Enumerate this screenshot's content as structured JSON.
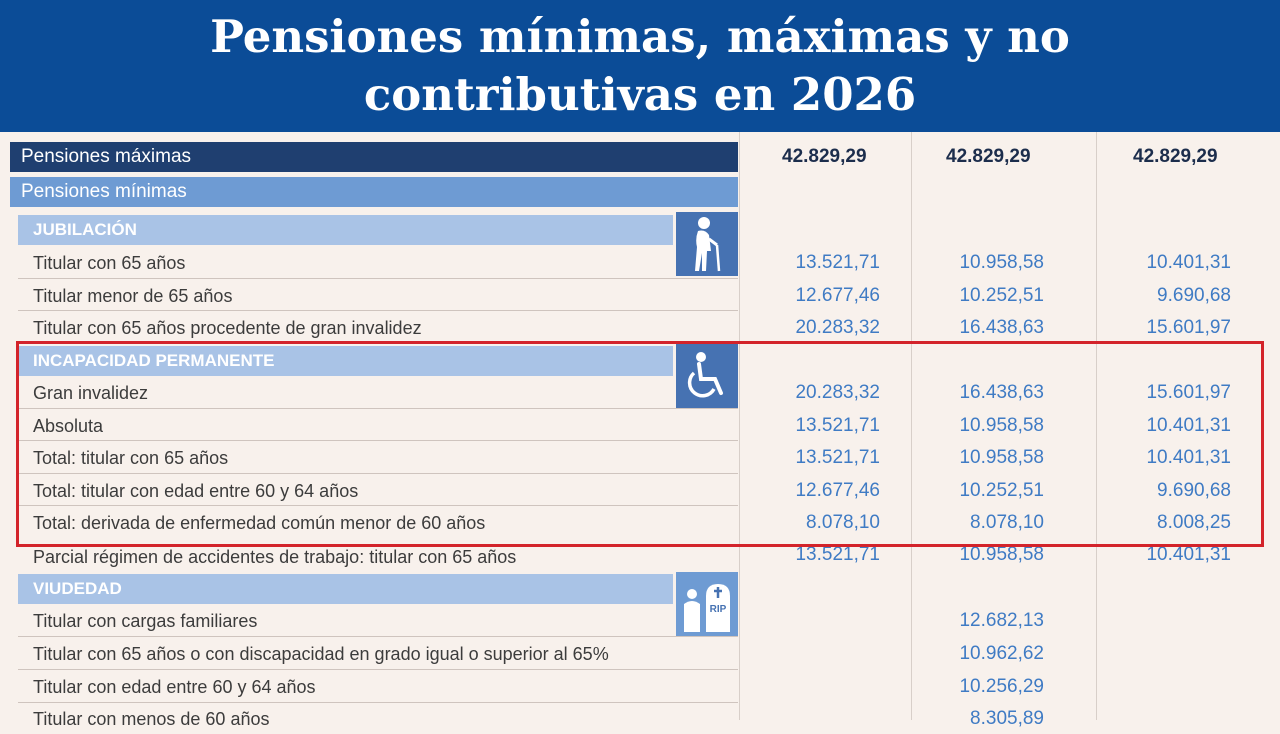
{
  "title": "Pensiones mínimas, máximas y no contributivas en 2026",
  "max": {
    "label": "Pensiones máximas",
    "values": [
      "42.829,29",
      "42.829,29",
      "42.829,29"
    ]
  },
  "min_label": "Pensiones mínimas",
  "sections": [
    {
      "name": "JUBILACIÓN",
      "icon": "elderly-person-icon",
      "rows": [
        {
          "label": "Titular con 65 años",
          "values": [
            "13.521,71",
            "10.958,58",
            "10.401,31"
          ]
        },
        {
          "label": "Titular menor de 65 años",
          "values": [
            "12.677,46",
            "10.252,51",
            "9.690,68"
          ]
        },
        {
          "label": "Titular con 65 años procedente de gran invalidez",
          "values": [
            "20.283,32",
            "16.438,63",
            "15.601,97"
          ]
        }
      ]
    },
    {
      "name": "INCAPACIDAD PERMANENTE",
      "icon": "wheelchair-icon",
      "rows": [
        {
          "label": "Gran invalidez",
          "values": [
            "20.283,32",
            "16.438,63",
            "15.601,97"
          ]
        },
        {
          "label": "Absoluta",
          "values": [
            "13.521,71",
            "10.958,58",
            "10.401,31"
          ]
        },
        {
          "label": "Total: titular con 65 años",
          "values": [
            "13.521,71",
            "10.958,58",
            "10.401,31"
          ]
        },
        {
          "label": "Total: titular con edad entre 60 y 64 años",
          "values": [
            "12.677,46",
            "10.252,51",
            "9.690,68"
          ]
        },
        {
          "label": "Total: derivada de enfermedad común menor de 60 años",
          "values": [
            "8.078,10",
            "8.078,10",
            "8.008,25"
          ]
        },
        {
          "label": "Parcial régimen de accidentes de trabajo: titular con 65 años",
          "values": [
            "13.521,71",
            "10.958,58",
            "10.401,31"
          ]
        }
      ]
    },
    {
      "name": "VIUDEDAD",
      "icon": "widow-rip-icon",
      "icon_text": "RIP",
      "rows": [
        {
          "label": "Titular con cargas familiares",
          "values": [
            "",
            "12.682,13",
            ""
          ]
        },
        {
          "label": "Titular con 65 años o con discapacidad en grado igual o superior al 65%",
          "values": [
            "",
            "10.962,62",
            ""
          ]
        },
        {
          "label": "Titular con edad entre 60 y 64 años",
          "values": [
            "",
            "10.256,29",
            ""
          ]
        },
        {
          "label": "Titular con menos de 60 años",
          "values": [
            "",
            "8.305,89",
            ""
          ]
        }
      ]
    }
  ],
  "colors": {
    "banner": "#0b4c97",
    "highlight": "#d3232a",
    "value_blue": "#3f7bc4"
  }
}
